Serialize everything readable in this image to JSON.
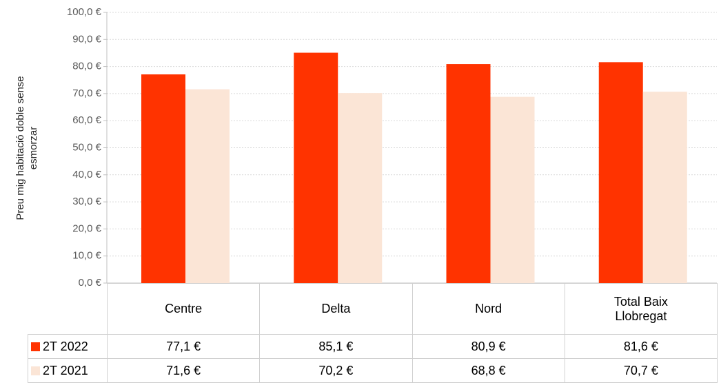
{
  "chart_data": {
    "type": "bar",
    "y_label": "Preu mig habitació doble sense esmorzar",
    "categories": [
      "Centre",
      "Delta",
      "Nord",
      "Total Baix Llobregat"
    ],
    "series": [
      {
        "name": "2T 2022",
        "color": "#ff3300",
        "values": [
          77.1,
          85.1,
          80.9,
          81.6
        ],
        "value_labels": [
          "77,1 €",
          "85,1 €",
          "80,9 €",
          "81,6 €"
        ]
      },
      {
        "name": "2T 2021",
        "color": "#fbe5d6",
        "values": [
          71.6,
          70.2,
          68.8,
          70.7
        ],
        "value_labels": [
          "71,6 €",
          "70,2 €",
          "68,8 €",
          "70,7 €"
        ]
      }
    ],
    "ylim": [
      0,
      100
    ],
    "yticks": [
      {
        "value": 0,
        "label": "0,0 €"
      },
      {
        "value": 10,
        "label": "10,0 €"
      },
      {
        "value": 20,
        "label": "20,0 €"
      },
      {
        "value": 30,
        "label": "30,0 €"
      },
      {
        "value": 40,
        "label": "40,0 €"
      },
      {
        "value": 50,
        "label": "50,0 €"
      },
      {
        "value": 60,
        "label": "60,0 €"
      },
      {
        "value": 70,
        "label": "70,0 €"
      },
      {
        "value": 80,
        "label": "80,0 €"
      },
      {
        "value": 90,
        "label": "90,0 €"
      },
      {
        "value": 100,
        "label": "100,0 €"
      }
    ],
    "grid": true
  }
}
